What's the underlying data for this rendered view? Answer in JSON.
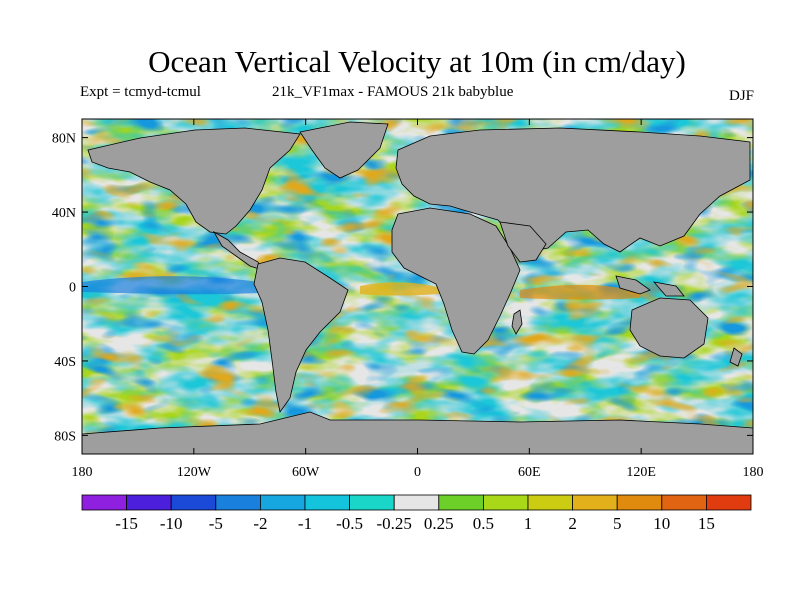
{
  "title": "Ocean Vertical Velocity at 10m (in cm/day)",
  "expt_label": "Expt = tcmyd-tcmul",
  "run_label": "21k_VF1max - FAMOUS 21k babyblue",
  "season": "DJF",
  "lat_ticks": [
    "80N",
    "40N",
    "0",
    "40S",
    "80S"
  ],
  "lon_ticks": [
    "180",
    "120W",
    "60W",
    "0",
    "60E",
    "120E",
    "180"
  ],
  "colorbar": {
    "colors": [
      "#8f20e0",
      "#4b1fdc",
      "#1c4ad8",
      "#1a80de",
      "#16a6e0",
      "#13c4dc",
      "#1ad6c8",
      "#e6e6e6",
      "#6cd028",
      "#a8d818",
      "#cccc12",
      "#e2b01a",
      "#e08a0e",
      "#e06412",
      "#e03c10"
    ],
    "labels": [
      "-15",
      "-10",
      "-5",
      "-2",
      "-1",
      "-0.5",
      "-0.25",
      "0.25",
      "0.5",
      "1",
      "2",
      "5",
      "10",
      "15"
    ]
  },
  "land_color": "#9e9e9e"
}
